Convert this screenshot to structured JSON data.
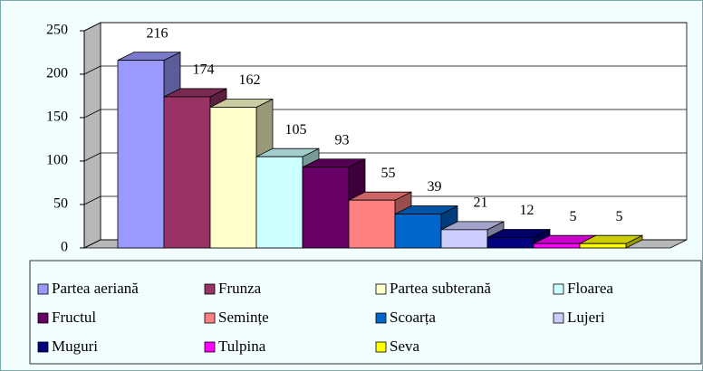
{
  "chart_data": {
    "type": "bar",
    "categories": [
      null
    ],
    "series": [
      {
        "name": "Partea aeriană",
        "color": "#9999ff",
        "values": [
          216
        ]
      },
      {
        "name": "Frunza",
        "color": "#993366",
        "values": [
          174
        ]
      },
      {
        "name": "Partea subterană",
        "color": "#ffffcc",
        "values": [
          162
        ]
      },
      {
        "name": "Floarea",
        "color": "#ccffff",
        "values": [
          105
        ]
      },
      {
        "name": "Fructul",
        "color": "#660066",
        "values": [
          93
        ]
      },
      {
        "name": "Semințe",
        "color": "#ff8080",
        "values": [
          55
        ]
      },
      {
        "name": "Scoarța",
        "color": "#0066cc",
        "values": [
          39
        ]
      },
      {
        "name": "Lujeri",
        "color": "#ccccff",
        "values": [
          21
        ]
      },
      {
        "name": "Muguri",
        "color": "#000080",
        "values": [
          12
        ]
      },
      {
        "name": "Tulpina",
        "color": "#ff00ff",
        "values": [
          5
        ]
      },
      {
        "name": "Seva",
        "color": "#ffff00",
        "values": [
          5
        ]
      }
    ],
    "ylim": [
      0,
      250
    ],
    "yticks": [
      0,
      50,
      100,
      150,
      200,
      250
    ],
    "grid": true,
    "legend": "bottom"
  }
}
